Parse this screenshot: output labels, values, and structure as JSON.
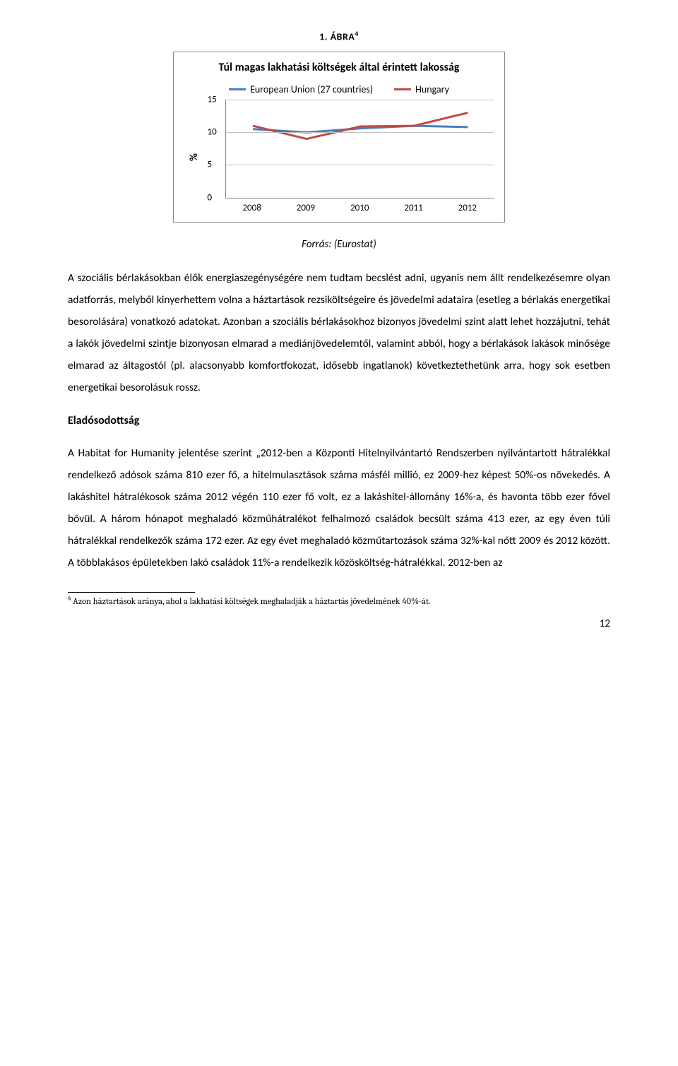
{
  "figure": {
    "label_prefix": "1.",
    "label_word": "ÁBRA",
    "footnote_mark": "4"
  },
  "chart": {
    "type": "line",
    "title": "Túl magas lakhatási költségek által érintett lakosság",
    "series": [
      {
        "name": "European Union (27 countries)",
        "color": "#4a7ebb",
        "values": [
          10.5,
          10,
          10.6,
          11,
          10.8
        ]
      },
      {
        "name": "Hungary",
        "color": "#be4b48",
        "values": [
          11,
          9,
          10.9,
          11,
          13
        ]
      }
    ],
    "line_width": 3,
    "ylabel": "%",
    "ylim": [
      0,
      15
    ],
    "ytick_step": 5,
    "categories": [
      "2008",
      "2009",
      "2010",
      "2011",
      "2012"
    ],
    "grid_color": "#bfbfbf",
    "background_color": "#ffffff",
    "label_fontsize": 13
  },
  "source": "Forrás: (Eurostat)",
  "para1": "A szociális bérlakásokban élők energiaszegénységére nem tudtam becslést adni, ugyanis nem állt rendelkezésemre olyan adatforrás, melyből kinyerhettem volna a háztartások rezsiköltségeire és jövedelmi adataira (esetleg a bérlakás energetikai besorolására) vonatkozó adatokat. Azonban a szociális bérlakásokhoz bizonyos jövedelmi szint alatt lehet hozzájutni, tehát a lakók jövedelmi szintje bizonyosan elmarad a mediánjövedelemtől, valamint abból, hogy a bérlakások lakások minősége elmarad az áltagostól (pl. alacsonyabb komfortfokozat, idősebb ingatlanok) következtethetünk arra, hogy sok esetben energetikai besorolásuk rossz.",
  "section_heading": "Eladósodottság",
  "para2": "A Habitat for Humanity jelentése szerint „2012-ben a Központi Hitelnyilvántartó Rendszerben nyilvántartott hátralékkal rendelkező adósok száma 810 ezer fő, a hitelmulasztások száma másfél millió, ez 2009-hez képest 50%-os növekedés. A lakáshitel hátralékosok száma 2012 végén 110 ezer fő volt, ez a lakáshitel-állomány 16%-a, és havonta több ezer fővel bővül. A három hónapot meghaladó közműhátralékot felhalmozó családok becsült száma 413 ezer, az egy éven túli hátralékkal rendelkezők száma 172 ezer. Az egy évet meghaladó közműtartozások száma 32%-kal nőtt 2009 és 2012 között. A többlakásos épületekben lakó családok 11%-a rendelkezik közösköltség-hátralékkal. 2012-ben az",
  "footnote": {
    "mark": "4",
    "text": "Azon háztartások aránya, ahol a lakhatási költségek meghaladják a háztartás jövedelmének 40%-át."
  },
  "pagenum": "12"
}
